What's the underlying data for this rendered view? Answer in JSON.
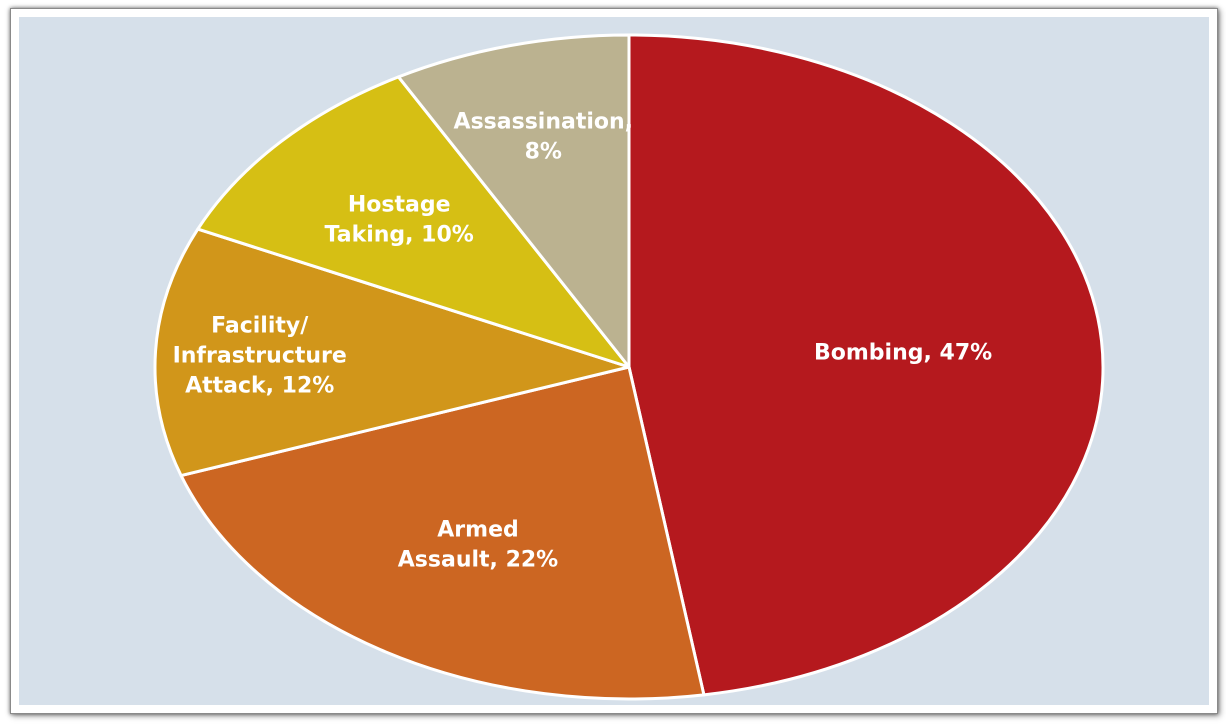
{
  "chart_data": {
    "type": "pie",
    "title": "",
    "slices": [
      {
        "name": "Bombing",
        "value": 47,
        "color": "#b5191e",
        "label_lines": [
          "Bombing, 47%"
        ]
      },
      {
        "name": "Armed Assault",
        "value": 22,
        "color": "#cc6622",
        "label_lines": [
          "Armed",
          "Assault, 22%"
        ]
      },
      {
        "name": "Facility/ Infrastructure Attack",
        "value": 12,
        "color": "#d1961a",
        "label_lines": [
          "Facility/",
          "Infrastructure",
          "Attack, 12%"
        ]
      },
      {
        "name": "Hostage Taking",
        "value": 10,
        "color": "#d6bf14",
        "label_lines": [
          "Hostage",
          "Taking, 10%"
        ]
      },
      {
        "name": "Assassination",
        "value": 8,
        "color": "#bbb290",
        "label_lines": [
          "Assassination,",
          "8%"
        ]
      }
    ],
    "start_position": "top",
    "direction": "clockwise",
    "legend": "none",
    "background_color": "#d6e0ea",
    "separator_color": "#ffffff"
  }
}
